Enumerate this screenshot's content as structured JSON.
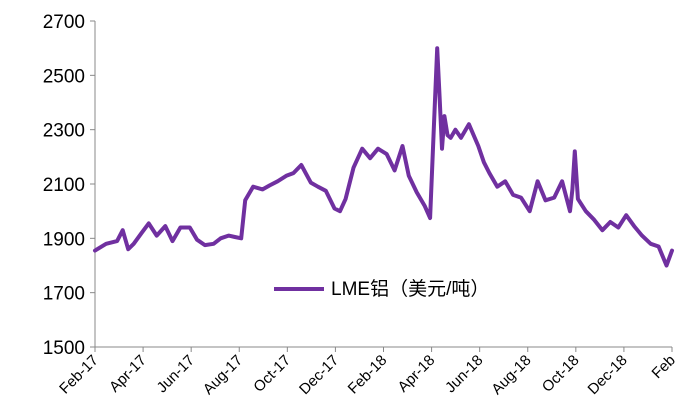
{
  "chart_data": {
    "type": "line",
    "title": "",
    "xlabel": "",
    "ylabel": "",
    "ylim": [
      1500,
      2700
    ],
    "yticks": [
      "2700",
      "2500",
      "2300",
      "2100",
      "1900",
      "1700",
      "1500"
    ],
    "xticks": [
      "Feb-17",
      "Apr-17",
      "Jun-17",
      "Aug-17",
      "Oct-17",
      "Dec-17",
      "Feb-18",
      "Apr-18",
      "Jun-18",
      "Aug-18",
      "Oct-18",
      "Dec-18",
      "Feb"
    ],
    "grid": false,
    "legend": {
      "position": "center-bottom",
      "items": [
        {
          "label": "LME铝（美元/吨）",
          "color": "#7030A0"
        }
      ]
    },
    "series": [
      {
        "name": "LME铝（美元/吨）",
        "color": "#7030A0",
        "x": [
          "2017-02-01",
          "2017-02-15",
          "2017-03-01",
          "2017-03-08",
          "2017-03-15",
          "2017-03-22",
          "2017-04-01",
          "2017-04-10",
          "2017-04-20",
          "2017-05-01",
          "2017-05-10",
          "2017-05-20",
          "2017-06-01",
          "2017-06-10",
          "2017-06-20",
          "2017-07-01",
          "2017-07-10",
          "2017-07-20",
          "2017-07-28",
          "2017-08-05",
          "2017-08-10",
          "2017-08-20",
          "2017-09-01",
          "2017-09-10",
          "2017-09-20",
          "2017-10-01",
          "2017-10-10",
          "2017-10-20",
          "2017-11-01",
          "2017-11-10",
          "2017-11-20",
          "2017-12-01",
          "2017-12-08",
          "2017-12-15",
          "2017-12-25",
          "2018-01-05",
          "2018-01-15",
          "2018-01-25",
          "2018-02-05",
          "2018-02-15",
          "2018-02-25",
          "2018-03-05",
          "2018-03-15",
          "2018-03-25",
          "2018-04-01",
          "2018-04-06",
          "2018-04-10",
          "2018-04-13",
          "2018-04-16",
          "2018-04-19",
          "2018-04-23",
          "2018-04-27",
          "2018-05-03",
          "2018-05-10",
          "2018-05-20",
          "2018-06-01",
          "2018-06-08",
          "2018-06-15",
          "2018-06-25",
          "2018-07-05",
          "2018-07-15",
          "2018-07-25",
          "2018-08-05",
          "2018-08-15",
          "2018-08-25",
          "2018-09-05",
          "2018-09-15",
          "2018-09-25",
          "2018-09-28",
          "2018-10-01",
          "2018-10-05",
          "2018-10-15",
          "2018-10-25",
          "2018-11-05",
          "2018-11-15",
          "2018-11-25",
          "2018-12-05",
          "2018-12-15",
          "2018-12-25",
          "2019-01-05",
          "2019-01-15",
          "2019-01-25",
          "2019-02-01"
        ],
        "values": [
          1855,
          1880,
          1890,
          1930,
          1860,
          1880,
          1920,
          1955,
          1910,
          1945,
          1890,
          1940,
          1940,
          1895,
          1875,
          1880,
          1900,
          1910,
          1905,
          1900,
          2040,
          2090,
          2080,
          2095,
          2110,
          2130,
          2140,
          2170,
          2105,
          2090,
          2075,
          2010,
          2000,
          2045,
          2160,
          2230,
          2195,
          2230,
          2210,
          2150,
          2240,
          2130,
          2070,
          2020,
          1975,
          2330,
          2600,
          2420,
          2230,
          2350,
          2280,
          2270,
          2300,
          2270,
          2320,
          2240,
          2180,
          2140,
          2090,
          2110,
          2060,
          2050,
          2000,
          2110,
          2040,
          2050,
          2110,
          2000,
          2080,
          2220,
          2045,
          2000,
          1970,
          1930,
          1960,
          1940,
          1985,
          1945,
          1910,
          1880,
          1870,
          1800,
          1855
        ]
      }
    ]
  }
}
